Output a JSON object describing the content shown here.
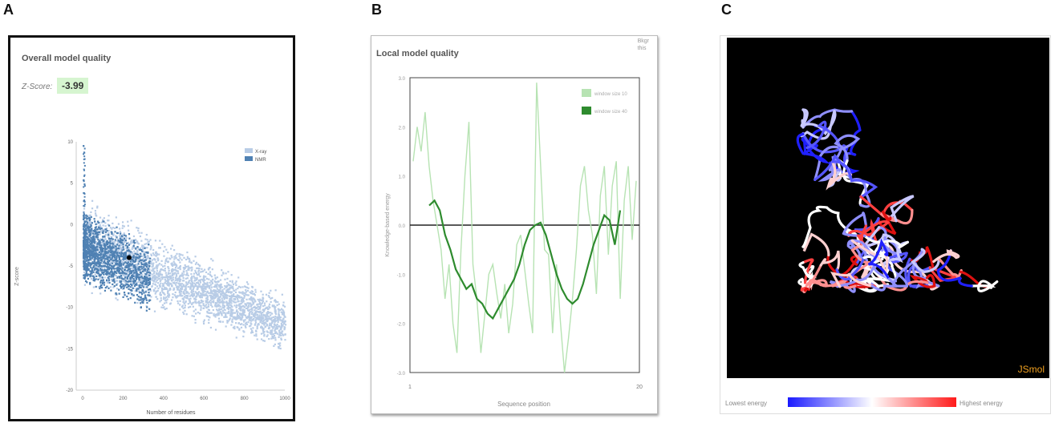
{
  "labels": {
    "a": "A",
    "b": "B",
    "c": "C"
  },
  "panel_a": {
    "title": "Overall model quality",
    "zscore_label": "Z-Score:",
    "zscore_value": "-3.99",
    "chart": {
      "ylabel": "Z-score",
      "xlabel": "Number of residues",
      "xticks": [
        "0",
        "200",
        "400",
        "600",
        "800",
        "1000"
      ],
      "yticks": [
        "10",
        "5",
        "0",
        "-5",
        "-10",
        "-15",
        "-20"
      ],
      "legend": [
        "X-ray",
        "NMR"
      ],
      "colors": {
        "xray": "#b8cce6",
        "nmr": "#4f81b3",
        "marker": "#000000"
      }
    }
  },
  "panel_b": {
    "title": "Local model quality",
    "corner_text": [
      "Bkgr",
      "this"
    ],
    "chart": {
      "ylabel": "Knowledge-based energy",
      "xlabel": "Sequence position",
      "xticks": [
        "1",
        "20"
      ],
      "yticks": [
        "3.0",
        "2.0",
        "1.0",
        "0.0",
        "-1.0",
        "-2.0",
        "-3.0"
      ],
      "legend": [
        "window size 10",
        "window size 40"
      ],
      "colors": {
        "light": "#b7e3b3",
        "dark": "#2e8b2e",
        "zero": "#222222"
      }
    }
  },
  "panel_c": {
    "jsmol_label": "JSmol",
    "lowest_label": "Lowest energy",
    "highest_label": "Highest energy"
  },
  "chart_data": [
    {
      "type": "scatter",
      "title": "",
      "xlabel": "Number of residues",
      "ylabel": "Z-score",
      "xlim": [
        0,
        1000
      ],
      "ylim": [
        -20,
        10
      ],
      "series": [
        {
          "name": "X-ray"
        },
        {
          "name": "NMR"
        }
      ],
      "highlight_point": {
        "x": 230,
        "y": -4
      }
    },
    {
      "type": "line",
      "title": "",
      "xlabel": "Sequence position",
      "ylabel": "Knowledge-based energy",
      "ylim": [
        -3,
        3
      ],
      "series": [
        {
          "name": "window size 10",
          "values": [
            1.3,
            2.0,
            1.5,
            2.3,
            1.2,
            0.5,
            0.0,
            -0.5,
            -1.5,
            -0.8,
            -2.0,
            -2.6,
            -0.5,
            1.0,
            2.1,
            -0.8,
            -1.5,
            -2.6,
            -1.8,
            -1.0,
            -0.8,
            -1.4,
            -1.9,
            -1.2,
            -2.2,
            -1.6,
            -0.4,
            -0.2,
            -0.9,
            -1.6,
            -2.2,
            2.9,
            1.2,
            -0.5,
            -0.6,
            -2.2,
            -0.8,
            -2.0,
            -3.0,
            -2.3,
            -1.5,
            -0.5,
            0.8,
            1.2,
            0.3,
            -0.2,
            -1.4,
            0.6,
            1.2,
            -0.6,
            0.8,
            1.3,
            -1.5,
            0.5,
            1.2,
            -0.3,
            0.9
          ]
        },
        {
          "name": "window size 40",
          "values": [
            0.4,
            0.5,
            0.3,
            -0.2,
            -0.5,
            -0.9,
            -1.1,
            -1.3,
            -1.2,
            -1.5,
            -1.6,
            -1.8,
            -1.9,
            -1.7,
            -1.5,
            -1.3,
            -1.1,
            -0.8,
            -0.4,
            -0.1,
            0.0,
            0.05,
            -0.2,
            -0.6,
            -1.0,
            -1.3,
            -1.5,
            -1.6,
            -1.5,
            -1.2,
            -0.8,
            -0.4,
            -0.1,
            0.2,
            0.1,
            -0.4,
            0.3
          ]
        }
      ]
    }
  ]
}
